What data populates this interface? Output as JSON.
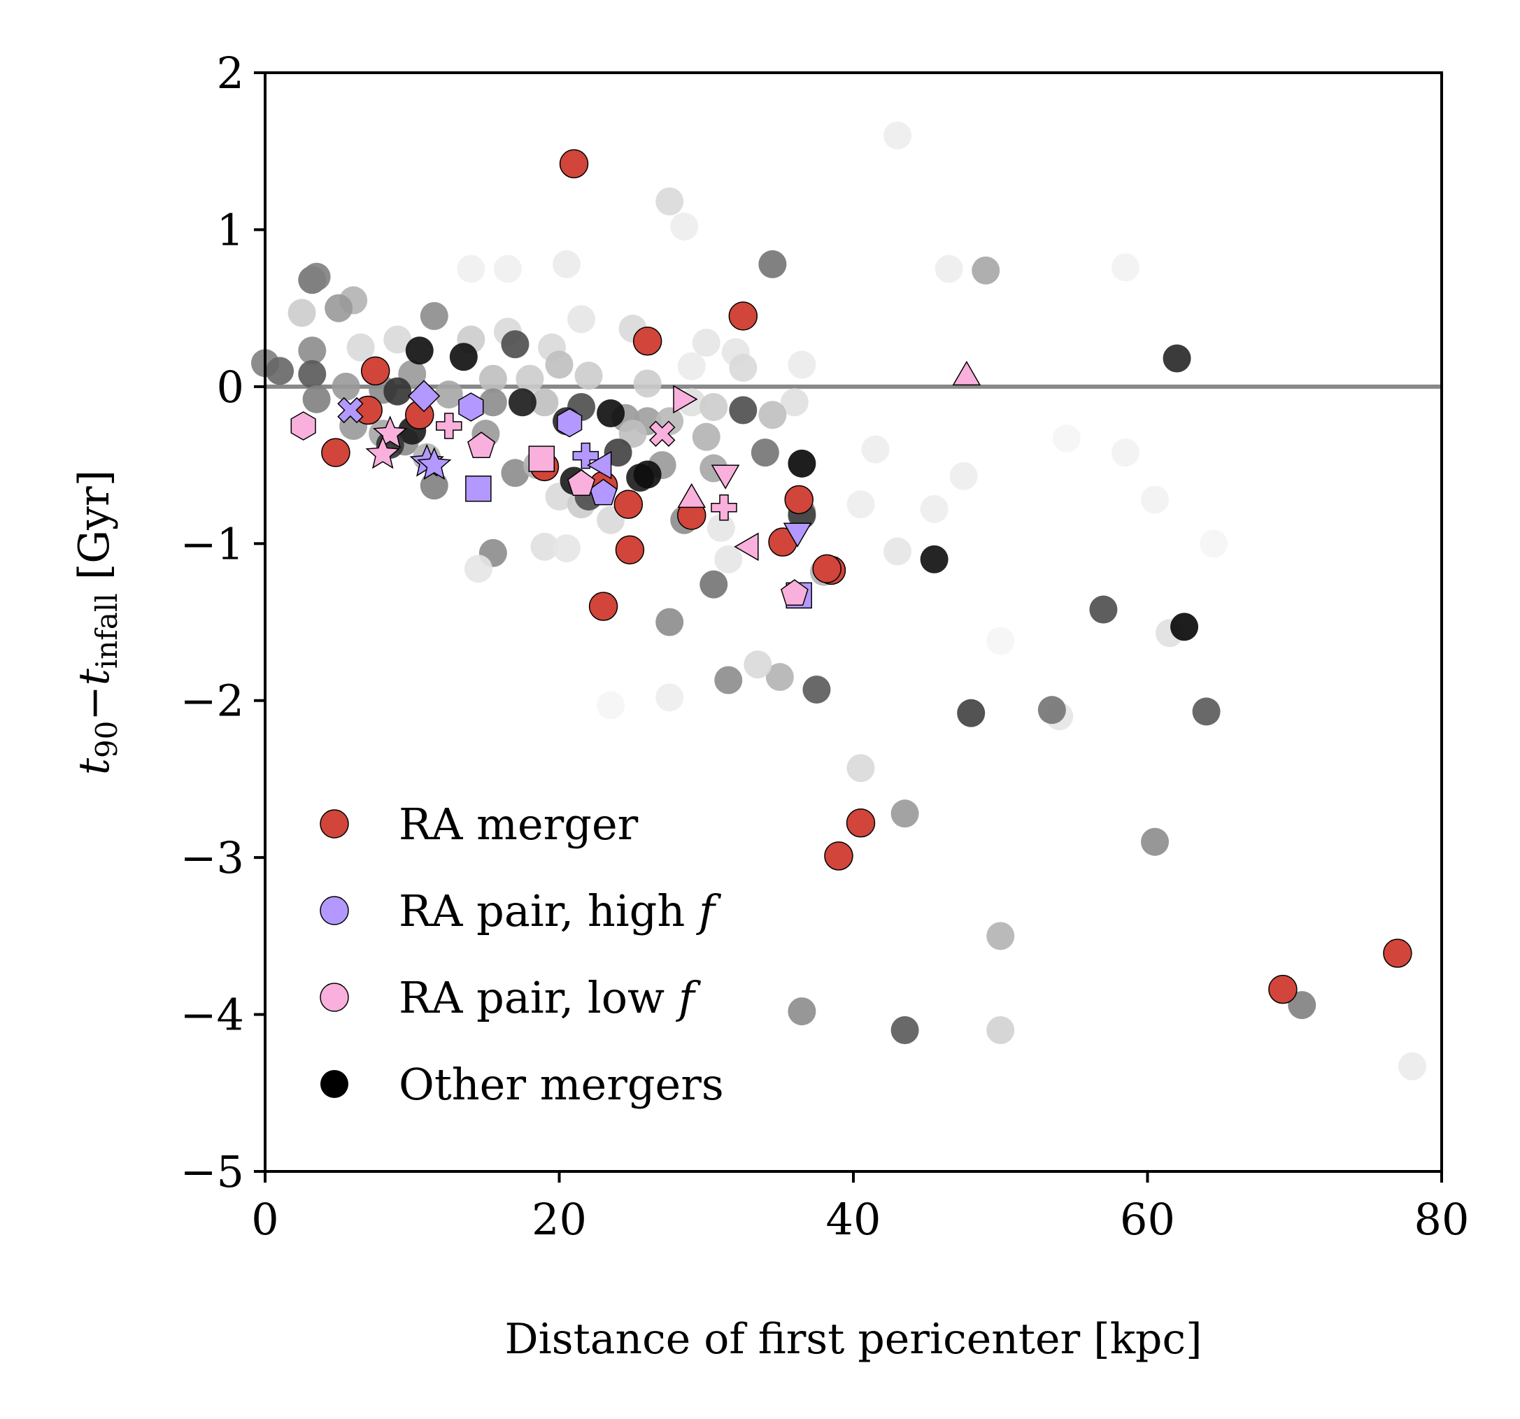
{
  "chart_data": {
    "type": "scatter",
    "xlabel": "Distance of first pericenter [kpc]",
    "ylabel": {
      "t1": "t",
      "s1": "90",
      "minus": "−",
      "t2": "t",
      "s2": "infall",
      "unit": " [Gyr]"
    },
    "xlim": [
      0,
      80
    ],
    "ylim": [
      -5,
      2
    ],
    "xticks": [
      0,
      20,
      40,
      60,
      80
    ],
    "xtick_labels": [
      "0",
      "20",
      "40",
      "60",
      "80"
    ],
    "yticks": [
      2,
      1,
      0,
      -1,
      -2,
      -3,
      -4,
      -5
    ],
    "ytick_labels": [
      "2",
      "1",
      "0",
      "−1",
      "−2",
      "−3",
      "−4",
      "−5"
    ],
    "reference_line": {
      "y": 0,
      "color": "#888888"
    },
    "legend_position": "lower-left",
    "legend": [
      {
        "label": "RA merger",
        "italic_suffix": "",
        "color": "#d1453a"
      },
      {
        "label": "RA pair, high ",
        "italic_suffix": "f",
        "color": "#b399ff"
      },
      {
        "label": "RA pair, low ",
        "italic_suffix": "f",
        "color": "#f9b0dc"
      },
      {
        "label": "Other mergers",
        "italic_suffix": "",
        "color": "#000000"
      }
    ],
    "series": [
      {
        "name": "background-mergers",
        "marker": "circle",
        "points": [
          {
            "x": 43,
            "y": 1.6,
            "g": 0.93
          },
          {
            "x": 27.5,
            "y": 1.18,
            "g": 0.85
          },
          {
            "x": 28.5,
            "y": 1.02,
            "g": 0.93
          },
          {
            "x": 20.5,
            "y": 0.78,
            "g": 0.92
          },
          {
            "x": 14,
            "y": 0.75,
            "g": 0.94
          },
          {
            "x": 16.5,
            "y": 0.75,
            "g": 0.94
          },
          {
            "x": 46.5,
            "y": 0.75,
            "g": 0.93
          },
          {
            "x": 58.5,
            "y": 0.76,
            "g": 0.95
          },
          {
            "x": 21.5,
            "y": 0.43,
            "g": 0.9
          },
          {
            "x": 25,
            "y": 0.37,
            "g": 0.85
          },
          {
            "x": 6,
            "y": 0.55,
            "g": 0.7
          },
          {
            "x": 5,
            "y": 0.5,
            "g": 0.6
          },
          {
            "x": 3.2,
            "y": 0.68,
            "g": 0.45
          },
          {
            "x": 3.5,
            "y": 0.7,
            "g": 0.5
          },
          {
            "x": 11.5,
            "y": 0.45,
            "g": 0.55
          },
          {
            "x": 2.5,
            "y": 0.47,
            "g": 0.8
          },
          {
            "x": 3.2,
            "y": 0.23,
            "g": 0.55
          },
          {
            "x": 6.5,
            "y": 0.25,
            "g": 0.85
          },
          {
            "x": 9,
            "y": 0.3,
            "g": 0.85
          },
          {
            "x": 14,
            "y": 0.3,
            "g": 0.8
          },
          {
            "x": 16.5,
            "y": 0.35,
            "g": 0.85
          },
          {
            "x": 19.5,
            "y": 0.25,
            "g": 0.85
          },
          {
            "x": 20,
            "y": 0.14,
            "g": 0.75
          },
          {
            "x": 22,
            "y": 0.07,
            "g": 0.8
          },
          {
            "x": 30,
            "y": 0.28,
            "g": 0.9
          },
          {
            "x": 32,
            "y": 0.22,
            "g": 0.9
          },
          {
            "x": 32.5,
            "y": 0.12,
            "g": 0.85
          },
          {
            "x": 36.5,
            "y": 0.14,
            "g": 0.92
          },
          {
            "x": 29,
            "y": 0.13,
            "g": 0.92
          },
          {
            "x": 0,
            "y": 0.15,
            "g": 0.5
          },
          {
            "x": 1,
            "y": 0.1,
            "g": 0.4
          },
          {
            "x": 3.2,
            "y": 0.08,
            "g": 0.35
          },
          {
            "x": 10,
            "y": 0.08,
            "g": 0.6
          },
          {
            "x": 15.5,
            "y": 0.05,
            "g": 0.75
          },
          {
            "x": 18,
            "y": 0.05,
            "g": 0.8
          },
          {
            "x": 26,
            "y": 0.02,
            "g": 0.8
          },
          {
            "x": 5.5,
            "y": 0,
            "g": 0.6
          },
          {
            "x": 8,
            "y": -0.02,
            "g": 0.55
          },
          {
            "x": 12.5,
            "y": -0.05,
            "g": 0.65
          },
          {
            "x": 3.5,
            "y": -0.08,
            "g": 0.5
          },
          {
            "x": 15.5,
            "y": -0.1,
            "g": 0.55
          },
          {
            "x": 19,
            "y": -0.1,
            "g": 0.75
          },
          {
            "x": 29,
            "y": -0.1,
            "g": 0.88
          },
          {
            "x": 36,
            "y": -0.1,
            "g": 0.88
          },
          {
            "x": 34.5,
            "y": -0.18,
            "g": 0.75
          },
          {
            "x": 30.5,
            "y": -0.13,
            "g": 0.8
          },
          {
            "x": 24.5,
            "y": -0.2,
            "g": 0.6
          },
          {
            "x": 26,
            "y": -0.22,
            "g": 0.62
          },
          {
            "x": 27.5,
            "y": -0.22,
            "g": 0.72
          },
          {
            "x": 15,
            "y": -0.3,
            "g": 0.6
          },
          {
            "x": 9.5,
            "y": -0.35,
            "g": 0.55
          },
          {
            "x": 8,
            "y": -0.3,
            "g": 0.65
          },
          {
            "x": 6,
            "y": -0.25,
            "g": 0.6
          },
          {
            "x": 11,
            "y": -0.45,
            "g": 0.7
          },
          {
            "x": 11.5,
            "y": -0.63,
            "g": 0.5
          },
          {
            "x": 17,
            "y": -0.55,
            "g": 0.55
          },
          {
            "x": 18.5,
            "y": -0.5,
            "g": 0.7
          },
          {
            "x": 20,
            "y": -0.7,
            "g": 0.85
          },
          {
            "x": 21.5,
            "y": -0.75,
            "g": 0.8
          },
          {
            "x": 23.5,
            "y": -0.85,
            "g": 0.85
          },
          {
            "x": 19,
            "y": -1.02,
            "g": 0.88
          },
          {
            "x": 20.5,
            "y": -1.03,
            "g": 0.9
          },
          {
            "x": 15.5,
            "y": -1.06,
            "g": 0.55
          },
          {
            "x": 14.5,
            "y": -1.16,
            "g": 0.9
          },
          {
            "x": 25,
            "y": -0.3,
            "g": 0.75
          },
          {
            "x": 27,
            "y": -0.5,
            "g": 0.6
          },
          {
            "x": 28.5,
            "y": -0.85,
            "g": 0.55
          },
          {
            "x": 30,
            "y": -0.32,
            "g": 0.7
          },
          {
            "x": 30.5,
            "y": -0.52,
            "g": 0.65
          },
          {
            "x": 31,
            "y": -0.9,
            "g": 0.9
          },
          {
            "x": 31.5,
            "y": -1.1,
            "g": 0.9
          },
          {
            "x": 34,
            "y": -0.42,
            "g": 0.45
          },
          {
            "x": 34.5,
            "y": 0.78,
            "g": 0.45
          },
          {
            "x": 30.5,
            "y": -1.26,
            "g": 0.45
          },
          {
            "x": 27.5,
            "y": -1.5,
            "g": 0.55
          },
          {
            "x": 31.5,
            "y": -1.87,
            "g": 0.55
          },
          {
            "x": 35,
            "y": -1.85,
            "g": 0.7
          },
          {
            "x": 33.5,
            "y": -1.77,
            "g": 0.85
          },
          {
            "x": 37.5,
            "y": -1.93,
            "g": 0.35
          },
          {
            "x": 27.5,
            "y": -1.98,
            "g": 0.93
          },
          {
            "x": 40.5,
            "y": -0.75,
            "g": 0.93
          },
          {
            "x": 45.5,
            "y": -0.78,
            "g": 0.93
          },
          {
            "x": 47.5,
            "y": -0.57,
            "g": 0.93
          },
          {
            "x": 43,
            "y": -1.05,
            "g": 0.9
          },
          {
            "x": 49,
            "y": 0.74,
            "g": 0.65
          },
          {
            "x": 57,
            "y": -1.42,
            "g": 0.3
          },
          {
            "x": 61.5,
            "y": -1.57,
            "g": 0.88
          },
          {
            "x": 54,
            "y": -2.1,
            "g": 0.9
          },
          {
            "x": 53.5,
            "y": -2.06,
            "g": 0.45
          },
          {
            "x": 64,
            "y": -2.07,
            "g": 0.35
          },
          {
            "x": 48,
            "y": -2.08,
            "g": 0.25
          },
          {
            "x": 40.5,
            "y": -2.43,
            "g": 0.85
          },
          {
            "x": 43.5,
            "y": -2.72,
            "g": 0.6
          },
          {
            "x": 60.5,
            "y": -2.9,
            "g": 0.55
          },
          {
            "x": 50,
            "y": -3.5,
            "g": 0.7
          },
          {
            "x": 36.5,
            "y": -3.98,
            "g": 0.55
          },
          {
            "x": 43.5,
            "y": -4.1,
            "g": 0.35
          },
          {
            "x": 50,
            "y": -4.1,
            "g": 0.82
          },
          {
            "x": 70.5,
            "y": -3.94,
            "g": 0.5
          },
          {
            "x": 78,
            "y": -4.33,
            "g": 0.92
          },
          {
            "x": 41.5,
            "y": -0.4,
            "g": 0.93
          },
          {
            "x": 60.5,
            "y": -0.72,
            "g": 0.95
          },
          {
            "x": 58.5,
            "y": -0.42,
            "g": 0.95
          },
          {
            "x": 54.5,
            "y": -0.33,
            "g": 0.96
          },
          {
            "x": 64.5,
            "y": -1,
            "g": 0.96
          },
          {
            "x": 50,
            "y": -1.62,
            "g": 0.96
          },
          {
            "x": 23.5,
            "y": -2.03,
            "g": 0.96
          },
          {
            "x": 38,
            "y": -1.18,
            "g": 0.7
          },
          {
            "x": 36.5,
            "y": -0.8,
            "g": 0.55
          }
        ]
      },
      {
        "name": "other-mergers",
        "marker": "circle",
        "color": "#000000",
        "points": [
          {
            "x": 10.5,
            "y": 0.23,
            "g": 0.05
          },
          {
            "x": 13.5,
            "y": 0.19,
            "g": 0.05
          },
          {
            "x": 17,
            "y": 0.27,
            "g": 0.3
          },
          {
            "x": 17.5,
            "y": -0.1,
            "g": 0.1
          },
          {
            "x": 21.5,
            "y": -0.13,
            "g": 0.3
          },
          {
            "x": 23.5,
            "y": -0.17,
            "g": 0.05
          },
          {
            "x": 20.5,
            "y": -0.22,
            "g": 0.15
          },
          {
            "x": 24,
            "y": -0.42,
            "g": 0.25
          },
          {
            "x": 21,
            "y": -0.6,
            "g": 0.1
          },
          {
            "x": 22,
            "y": -0.7,
            "g": 0.3
          },
          {
            "x": 25.5,
            "y": -0.58,
            "g": 0.1
          },
          {
            "x": 26,
            "y": -0.56,
            "g": 0.05
          },
          {
            "x": 32.5,
            "y": -0.15,
            "g": 0.3
          },
          {
            "x": 36.5,
            "y": -0.49,
            "g": 0.02
          },
          {
            "x": 36.5,
            "y": -0.82,
            "g": 0.25
          },
          {
            "x": 45.5,
            "y": -1.1,
            "g": 0.05
          },
          {
            "x": 62,
            "y": 0.18,
            "g": 0.15
          },
          {
            "x": 62.5,
            "y": -1.53,
            "g": 0.02
          },
          {
            "x": 10,
            "y": -0.28,
            "g": 0.1
          },
          {
            "x": 9,
            "y": -0.03,
            "g": 0.2
          },
          {
            "x": 8.5,
            "y": -0.37,
            "g": 0.2
          }
        ]
      },
      {
        "name": "RA merger",
        "marker": "circle",
        "color": "#d1453a",
        "points": [
          {
            "x": 21,
            "y": 1.42
          },
          {
            "x": 32.5,
            "y": 0.45
          },
          {
            "x": 26,
            "y": 0.29
          },
          {
            "x": 7.5,
            "y": 0.1
          },
          {
            "x": 7,
            "y": -0.15
          },
          {
            "x": 10.5,
            "y": -0.18
          },
          {
            "x": 4.8,
            "y": -0.42
          },
          {
            "x": 19,
            "y": -0.51
          },
          {
            "x": 23,
            "y": -0.63
          },
          {
            "x": 24.7,
            "y": -0.75
          },
          {
            "x": 29,
            "y": -0.82
          },
          {
            "x": 36.3,
            "y": -0.72
          },
          {
            "x": 35.2,
            "y": -0.99
          },
          {
            "x": 24.8,
            "y": -1.04
          },
          {
            "x": 38.5,
            "y": -1.17
          },
          {
            "x": 38.2,
            "y": -1.16
          },
          {
            "x": 23,
            "y": -1.4
          },
          {
            "x": 40.5,
            "y": -2.78
          },
          {
            "x": 39,
            "y": -2.99
          },
          {
            "x": 69.2,
            "y": -3.84
          },
          {
            "x": 77,
            "y": -3.61
          }
        ]
      },
      {
        "name": "RA pair, high f",
        "color": "#b399ff",
        "points": [
          {
            "x": 5.8,
            "y": -0.15,
            "m": "x"
          },
          {
            "x": 10.8,
            "y": -0.06,
            "m": "diamond"
          },
          {
            "x": 14,
            "y": -0.13,
            "m": "hexagon"
          },
          {
            "x": 20.7,
            "y": -0.23,
            "m": "hexagon"
          },
          {
            "x": 11,
            "y": -0.48,
            "m": "star"
          },
          {
            "x": 11.5,
            "y": -0.5,
            "m": "star"
          },
          {
            "x": 14.5,
            "y": -0.65,
            "m": "square"
          },
          {
            "x": 21.8,
            "y": -0.44,
            "m": "plus"
          },
          {
            "x": 23,
            "y": -0.5,
            "m": "tri-left"
          },
          {
            "x": 23,
            "y": -0.68,
            "m": "pentagon"
          },
          {
            "x": 36.2,
            "y": -0.92,
            "m": "tri-down"
          },
          {
            "x": 36.3,
            "y": -1.33,
            "m": "square"
          }
        ]
      },
      {
        "name": "RA pair, low f",
        "color": "#f9b0dc",
        "points": [
          {
            "x": 2.6,
            "y": -0.25,
            "m": "hexagon"
          },
          {
            "x": 8.5,
            "y": -0.3,
            "m": "star"
          },
          {
            "x": 8,
            "y": -0.43,
            "m": "star"
          },
          {
            "x": 12.5,
            "y": -0.25,
            "m": "plus"
          },
          {
            "x": 14.7,
            "y": -0.38,
            "m": "pentagon"
          },
          {
            "x": 18.8,
            "y": -0.46,
            "m": "square"
          },
          {
            "x": 21.5,
            "y": -0.62,
            "m": "pentagon"
          },
          {
            "x": 28.3,
            "y": -0.08,
            "m": "tri-right"
          },
          {
            "x": 27,
            "y": -0.3,
            "m": "x"
          },
          {
            "x": 29,
            "y": -0.72,
            "m": "tri-up"
          },
          {
            "x": 31.3,
            "y": -0.55,
            "m": "tri-down"
          },
          {
            "x": 31.2,
            "y": -0.77,
            "m": "plus"
          },
          {
            "x": 33,
            "y": -1.02,
            "m": "tri-left"
          },
          {
            "x": 36,
            "y": -1.32,
            "m": "pentagon"
          },
          {
            "x": 47.7,
            "y": 0.06,
            "m": "tri-up"
          }
        ]
      }
    ]
  }
}
